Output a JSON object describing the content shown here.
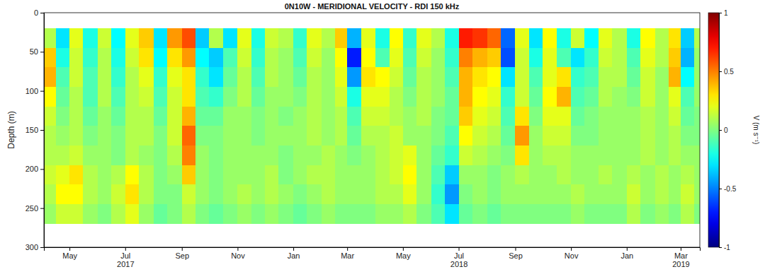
{
  "chart_data": {
    "type": "heatmap",
    "title": "0N10W - MERIDIONAL VELOCITY - RDI 150 kHz",
    "y_label": "Depth (m)",
    "x": [
      "2017-04-03",
      "2017-04-16",
      "2017-05-01",
      "2017-05-16",
      "2017-06-01",
      "2017-06-16",
      "2017-07-01",
      "2017-07-16",
      "2017-08-01",
      "2017-08-16",
      "2017-09-01",
      "2017-09-16",
      "2017-10-01",
      "2017-10-16",
      "2017-11-01",
      "2017-11-16",
      "2017-12-01",
      "2017-12-16",
      "2018-01-01",
      "2018-01-16",
      "2018-02-01",
      "2018-02-16",
      "2018-03-01",
      "2018-03-16",
      "2018-04-01",
      "2018-04-16",
      "2018-05-01",
      "2018-05-16",
      "2018-06-01",
      "2018-06-16",
      "2018-07-01",
      "2018-07-16",
      "2018-08-01",
      "2018-08-16",
      "2018-09-01",
      "2018-09-16",
      "2018-10-01",
      "2018-10-16",
      "2018-11-01",
      "2018-11-16",
      "2018-12-01",
      "2018-12-16",
      "2019-01-01",
      "2019-01-16",
      "2019-02-01",
      "2019-02-16",
      "2019-03-01",
      "2019-03-16",
      "2019-03-22"
    ],
    "y": [
      20,
      45,
      70,
      95,
      120,
      145,
      170,
      195,
      220,
      245,
      270
    ],
    "values": [
      [
        0.1,
        -0.3,
        0.2,
        -0.2,
        0.15,
        -0.25,
        0.2,
        0.35,
        -0.3,
        0.45,
        0.6,
        -0.35,
        0.1,
        -0.3,
        0.2,
        -0.2,
        0.15,
        0.1,
        -0.15,
        0.2,
        0.1,
        0.35,
        -0.4,
        0.2,
        -0.2,
        0.25,
        -0.15,
        0.2,
        0.1,
        -0.2,
        0.7,
        0.65,
        0.55,
        -0.55,
        0.2,
        -0.3,
        0.25,
        -0.2,
        0.15,
        -0.25,
        0.2,
        0.1,
        -0.2,
        0.25,
        0.1,
        0.3,
        -0.35,
        0.1
      ],
      [
        0.35,
        -0.2,
        0.15,
        -0.15,
        0.1,
        -0.2,
        0.15,
        0.3,
        -0.25,
        0.3,
        0.45,
        -0.25,
        -0.35,
        -0.1,
        0.15,
        -0.15,
        0.1,
        0.05,
        -0.1,
        0.15,
        0.05,
        0.25,
        -0.7,
        0.25,
        -0.1,
        0.2,
        -0.1,
        0.15,
        0.05,
        -0.15,
        0.5,
        0.4,
        0.35,
        -0.6,
        0.15,
        -0.2,
        0.2,
        -0.1,
        -0.3,
        -0.15,
        0.15,
        0.1,
        -0.1,
        0.2,
        0.1,
        0.35,
        -0.4,
        0.05
      ],
      [
        0.4,
        -0.1,
        0.15,
        -0.1,
        0.1,
        -0.15,
        0.1,
        0.2,
        -0.15,
        0.2,
        0.3,
        -0.15,
        -0.3,
        -0.05,
        0.1,
        -0.1,
        0.1,
        0.05,
        -0.05,
        0.1,
        0.05,
        0.2,
        -0.45,
        0.3,
        0.25,
        0.15,
        -0.05,
        0.1,
        0.05,
        -0.1,
        0.4,
        0.3,
        0.25,
        -0.3,
        0.15,
        -0.1,
        0.2,
        0.3,
        -0.15,
        -0.1,
        0.1,
        0.1,
        -0.05,
        0.15,
        0.05,
        0.4,
        -0.25,
        0.05
      ],
      [
        0.25,
        -0.05,
        0.1,
        -0.1,
        0.1,
        -0.1,
        0.1,
        0.15,
        -0.1,
        0.15,
        0.3,
        -0.1,
        -0.15,
        0,
        0.1,
        -0.05,
        0.05,
        0.05,
        0,
        0.1,
        0.05,
        0.15,
        -0.2,
        0.2,
        0.2,
        0.1,
        0,
        0.1,
        0.05,
        -0.05,
        0.4,
        0.25,
        0.2,
        -0.15,
        0.15,
        -0.05,
        0.25,
        0.4,
        -0.1,
        -0.05,
        0.1,
        0.05,
        0,
        0.15,
        0.05,
        0.2,
        -0.1,
        0.05
      ],
      [
        0.15,
        0,
        0.1,
        -0.05,
        0.05,
        -0.05,
        0.1,
        0.1,
        -0.05,
        0.15,
        0.4,
        -0.05,
        -0.05,
        0.05,
        0.05,
        0,
        0.05,
        0,
        0.05,
        0.1,
        0.05,
        0.1,
        -0.1,
        0.15,
        0.15,
        0.1,
        0.05,
        0.1,
        0,
        -0.05,
        0.35,
        0.2,
        0.15,
        -0.1,
        0.3,
        0,
        0.2,
        0.2,
        -0.05,
        0,
        0.05,
        0.05,
        0.05,
        0.1,
        0.05,
        0.15,
        -0.05,
        0
      ],
      [
        0.1,
        0.05,
        0.1,
        0,
        0.05,
        0,
        0.1,
        0.1,
        0,
        0.15,
        0.55,
        0,
        0,
        0.05,
        0.05,
        0,
        0.05,
        0.05,
        0.05,
        0.1,
        0.05,
        0.1,
        -0.05,
        0.1,
        0.1,
        0.15,
        0.05,
        0.05,
        0,
        -0.1,
        0.25,
        0.15,
        0.1,
        -0.05,
        0.45,
        0.05,
        0.15,
        0.15,
        0,
        0,
        0.05,
        0.05,
        0.05,
        0.1,
        0.05,
        0.1,
        0,
        0
      ],
      [
        0.1,
        0.1,
        0.15,
        0.05,
        0.05,
        0,
        0.1,
        0.05,
        0,
        0.1,
        0.5,
        0.05,
        0,
        0.05,
        0.05,
        0.05,
        0.05,
        0,
        0.05,
        0.05,
        0.1,
        0.05,
        0,
        0.05,
        0.1,
        0.15,
        0.2,
        0.05,
        -0.05,
        -0.15,
        0.15,
        0.1,
        0.05,
        0,
        0.3,
        0.05,
        0.1,
        0.1,
        0.05,
        0.05,
        0.05,
        0.05,
        0.05,
        0.1,
        0.05,
        0.1,
        0.05,
        0.05
      ],
      [
        0.15,
        0.2,
        0.3,
        0.1,
        0.05,
        0.1,
        0.25,
        0.1,
        0,
        0.05,
        0.35,
        0.05,
        0,
        0.05,
        0.05,
        0.05,
        0.1,
        0,
        0.05,
        0.1,
        0.1,
        0.05,
        0.05,
        0.05,
        0.1,
        0.15,
        0.25,
        0.05,
        -0.1,
        -0.35,
        0.05,
        0.05,
        0,
        0.05,
        0.1,
        0.05,
        0.05,
        0.1,
        0.05,
        0.05,
        0.1,
        0.05,
        0.1,
        0.05,
        0.1,
        0.05,
        0.1,
        0.05
      ],
      [
        0.1,
        0.25,
        0.25,
        0.1,
        0.05,
        0.15,
        0.3,
        0.1,
        0,
        0,
        0.15,
        0.05,
        0,
        0.05,
        0.1,
        0.05,
        0.1,
        0.05,
        0,
        0.05,
        0.1,
        0.05,
        0.05,
        0.05,
        0.1,
        0.1,
        0.2,
        0.05,
        -0.15,
        -0.45,
        0,
        0.05,
        0,
        0.05,
        0.05,
        0.05,
        0.05,
        0.05,
        0.1,
        0.05,
        0.05,
        0.05,
        0.15,
        0.05,
        0.1,
        0.05,
        0.15,
        0.05
      ],
      [
        0.05,
        0.15,
        0.15,
        0.05,
        0,
        0.1,
        0.2,
        0.05,
        -0.05,
        0,
        0.1,
        0,
        -0.05,
        0,
        0.05,
        0,
        0.05,
        0,
        -0.05,
        0,
        0.05,
        0,
        0,
        0,
        0.05,
        0.05,
        0.1,
        0,
        -0.1,
        -0.3,
        -0.05,
        0,
        -0.05,
        0,
        0,
        0,
        0,
        0,
        0.05,
        0,
        0,
        0,
        0.1,
        0,
        0.05,
        0,
        0.1,
        0
      ]
    ],
    "xlim": [
      "2017-04-03",
      "2019-03-22"
    ],
    "xticks": [
      {
        "value": "2017-05-01",
        "label": "May"
      },
      {
        "value": "2017-07-01",
        "label": "Jul\n2017"
      },
      {
        "value": "2017-09-01",
        "label": "Sep"
      },
      {
        "value": "2017-11-01",
        "label": "Nov"
      },
      {
        "value": "2018-01-01",
        "label": "Jan"
      },
      {
        "value": "2018-03-01",
        "label": "Mar"
      },
      {
        "value": "2018-05-01",
        "label": "May"
      },
      {
        "value": "2018-07-01",
        "label": "Jul\n2018"
      },
      {
        "value": "2018-09-01",
        "label": "Sep"
      },
      {
        "value": "2018-11-01",
        "label": "Nov"
      },
      {
        "value": "2019-01-01",
        "label": "Jan"
      },
      {
        "value": "2019-03-01",
        "label": "Mar\n2019"
      }
    ],
    "ylim": [
      0,
      300
    ],
    "yticks": [
      0,
      50,
      100,
      150,
      200,
      250,
      300
    ],
    "colorbar": {
      "range": [
        -1,
        1
      ],
      "ticks": [
        -1,
        -0.5,
        0,
        0.5,
        1
      ],
      "label": "V (m s⁻¹)"
    }
  }
}
